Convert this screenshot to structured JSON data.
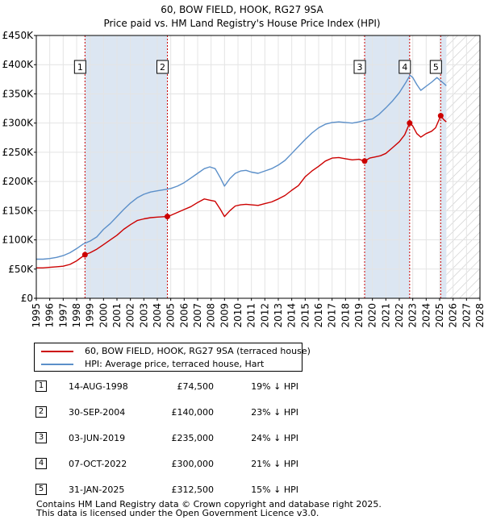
{
  "chart_data": {
    "type": "line",
    "title": "60, BOW FIELD, HOOK, RG27 9SA",
    "subtitle": "Price paid vs. HM Land Registry's House Price Index (HPI)",
    "xlim": [
      1995,
      2028
    ],
    "ylim": [
      0,
      450000
    ],
    "y_ticks": [
      0,
      50000,
      100000,
      150000,
      200000,
      250000,
      300000,
      350000,
      400000,
      450000
    ],
    "y_tick_labels": [
      "£0",
      "£50K",
      "£100K",
      "£150K",
      "£200K",
      "£250K",
      "£300K",
      "£350K",
      "£400K",
      "£450K"
    ],
    "x_ticks": [
      "1995",
      "1996",
      "1997",
      "1998",
      "1999",
      "2000",
      "2001",
      "2002",
      "2003",
      "2004",
      "2005",
      "2006",
      "2007",
      "2008",
      "2009",
      "2010",
      "2011",
      "2012",
      "2013",
      "2014",
      "2015",
      "2016",
      "2017",
      "2018",
      "2019",
      "2020",
      "2021",
      "2022",
      "2023",
      "2024",
      "2025",
      "2026",
      "2027",
      "2028"
    ],
    "forecast_start": 2025.5,
    "colors": {
      "property": "#cc0000",
      "hpi": "#5b8fc9",
      "shade": "#dce6f2",
      "grid": "#e4e4e4",
      "vline": "#cc0000"
    },
    "series": [
      {
        "name": "60, BOW FIELD, HOOK, RG27 9SA (terraced house)",
        "color": "#cc0000",
        "x": [
          1995.0,
          1995.5,
          1996.0,
          1996.5,
          1997.0,
          1997.5,
          1998.0,
          1998.62,
          1999.0,
          1999.5,
          2000.0,
          2000.5,
          2001.0,
          2001.5,
          2002.0,
          2002.5,
          2003.0,
          2003.5,
          2004.0,
          2004.75,
          2005.0,
          2005.5,
          2006.0,
          2006.5,
          2007.0,
          2007.5,
          2007.9,
          2008.3,
          2008.7,
          2009.0,
          2009.4,
          2009.8,
          2010.2,
          2010.6,
          2011.0,
          2011.5,
          2012.0,
          2012.5,
          2013.0,
          2013.5,
          2014.0,
          2014.5,
          2015.0,
          2015.5,
          2016.0,
          2016.5,
          2017.0,
          2017.5,
          2018.0,
          2018.5,
          2019.0,
          2019.42,
          2019.8,
          2020.2,
          2020.6,
          2021.0,
          2021.5,
          2022.0,
          2022.4,
          2022.77,
          2023.0,
          2023.3,
          2023.6,
          2024.0,
          2024.4,
          2024.7,
          2025.08,
          2025.3,
          2025.5
        ],
        "y": [
          52000,
          52000,
          53000,
          54000,
          55000,
          58000,
          64000,
          74500,
          78000,
          84000,
          92000,
          100000,
          108000,
          118000,
          126000,
          133000,
          136000,
          138000,
          139000,
          140000,
          142000,
          147000,
          152000,
          157000,
          164000,
          170000,
          168000,
          166000,
          152000,
          140000,
          150000,
          158000,
          160000,
          161000,
          160000,
          159000,
          162000,
          165000,
          170000,
          176000,
          185000,
          193000,
          208000,
          218000,
          226000,
          235000,
          240000,
          241000,
          239000,
          237000,
          238000,
          235000,
          240000,
          242000,
          244000,
          248000,
          258000,
          268000,
          280000,
          300000,
          295000,
          282000,
          276000,
          282000,
          286000,
          292000,
          312500,
          306000,
          302000
        ]
      },
      {
        "name": "HPI: Average price, terraced house, Hart",
        "color": "#5b8fc9",
        "x": [
          1995.0,
          1995.5,
          1996.0,
          1996.5,
          1997.0,
          1997.5,
          1998.0,
          1998.5,
          1999.0,
          1999.5,
          2000.0,
          2000.5,
          2001.0,
          2001.5,
          2002.0,
          2002.5,
          2003.0,
          2003.5,
          2004.0,
          2004.5,
          2005.0,
          2005.5,
          2006.0,
          2006.5,
          2007.0,
          2007.5,
          2007.9,
          2008.3,
          2008.7,
          2009.0,
          2009.4,
          2009.8,
          2010.2,
          2010.6,
          2011.0,
          2011.5,
          2012.0,
          2012.5,
          2013.0,
          2013.5,
          2014.0,
          2014.5,
          2015.0,
          2015.5,
          2016.0,
          2016.5,
          2017.0,
          2017.5,
          2018.0,
          2018.5,
          2019.0,
          2019.5,
          2020.0,
          2020.5,
          2021.0,
          2021.5,
          2022.0,
          2022.5,
          2022.8,
          2023.0,
          2023.3,
          2023.6,
          2024.0,
          2024.4,
          2024.8,
          2025.0,
          2025.3,
          2025.5
        ],
        "y": [
          67000,
          67000,
          68000,
          70000,
          73000,
          78000,
          85000,
          93000,
          98000,
          105000,
          118000,
          128000,
          140000,
          152000,
          163000,
          172000,
          178000,
          182000,
          184000,
          186000,
          188000,
          192000,
          198000,
          206000,
          214000,
          222000,
          225000,
          222000,
          206000,
          192000,
          205000,
          214000,
          218000,
          219000,
          216000,
          214000,
          218000,
          222000,
          228000,
          236000,
          248000,
          260000,
          272000,
          283000,
          292000,
          298000,
          301000,
          302000,
          301000,
          300000,
          302000,
          305000,
          307000,
          315000,
          326000,
          338000,
          352000,
          370000,
          382000,
          378000,
          366000,
          356000,
          363000,
          370000,
          378000,
          374000,
          368000,
          364000
        ]
      }
    ],
    "sales": [
      {
        "n": "1",
        "x": 1998.62,
        "y": 74500
      },
      {
        "n": "2",
        "x": 2004.75,
        "y": 140000
      },
      {
        "n": "3",
        "x": 2019.42,
        "y": 235000
      },
      {
        "n": "4",
        "x": 2022.77,
        "y": 300000
      },
      {
        "n": "5",
        "x": 2025.08,
        "y": 312500
      }
    ]
  },
  "legend": {
    "property": "60, BOW FIELD, HOOK, RG27 9SA (terraced house)",
    "hpi": "HPI: Average price, terraced house, Hart"
  },
  "transactions": [
    {
      "n": "1",
      "date": "14-AUG-1998",
      "price": "£74,500",
      "hpi": "19% ↓ HPI"
    },
    {
      "n": "2",
      "date": "30-SEP-2004",
      "price": "£140,000",
      "hpi": "23% ↓ HPI"
    },
    {
      "n": "3",
      "date": "03-JUN-2019",
      "price": "£235,000",
      "hpi": "24% ↓ HPI"
    },
    {
      "n": "4",
      "date": "07-OCT-2022",
      "price": "£300,000",
      "hpi": "21% ↓ HPI"
    },
    {
      "n": "5",
      "date": "31-JAN-2025",
      "price": "£312,500",
      "hpi": "15% ↓ HPI"
    }
  ],
  "footer": {
    "line1": "Contains HM Land Registry data © Crown copyright and database right 2025.",
    "line2": "This data is licensed under the Open Government Licence v3.0."
  }
}
